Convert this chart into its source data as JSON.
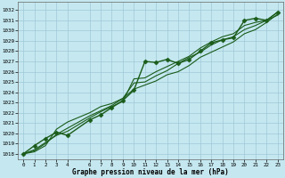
{
  "title": "Graphe pression niveau de la mer (hPa)",
  "bg_color": "#c5e8f0",
  "grid_color": "#a0c8d8",
  "line_color": "#1a5c1a",
  "marker_color": "#1a5c1a",
  "xlim": [
    -0.5,
    23.5
  ],
  "ylim": [
    1017.5,
    1032.8
  ],
  "xticks": [
    0,
    1,
    2,
    3,
    4,
    6,
    7,
    8,
    9,
    10,
    11,
    12,
    13,
    14,
    15,
    16,
    17,
    18,
    19,
    20,
    21,
    22,
    23
  ],
  "yticks": [
    1018,
    1019,
    1020,
    1021,
    1022,
    1023,
    1024,
    1025,
    1026,
    1027,
    1028,
    1029,
    1030,
    1031,
    1032
  ],
  "lines": [
    {
      "x": [
        0,
        1,
        2,
        3,
        4,
        6,
        7,
        8,
        9,
        10,
        11,
        12,
        13,
        14,
        15,
        16,
        17,
        18,
        19,
        20,
        21,
        22,
        23
      ],
      "y": [
        1018.0,
        1018.8,
        1019.5,
        1020.1,
        1019.8,
        1021.3,
        1021.8,
        1022.5,
        1023.2,
        1024.2,
        1027.0,
        1026.9,
        1027.2,
        1026.8,
        1027.2,
        1028.0,
        1028.8,
        1029.1,
        1029.3,
        1031.0,
        1031.2,
        1031.0,
        1031.8
      ],
      "marker": "D",
      "markersize": 2.5,
      "linewidth": 1.0
    },
    {
      "x": [
        0,
        1,
        2,
        3,
        4,
        6,
        7,
        8,
        9,
        10,
        11,
        12,
        13,
        14,
        15,
        16,
        17,
        18,
        19,
        20,
        21,
        22,
        23
      ],
      "y": [
        1018.0,
        1018.4,
        1019.1,
        1019.8,
        1020.2,
        1021.5,
        1022.1,
        1022.6,
        1023.1,
        1025.3,
        1025.4,
        1026.0,
        1026.5,
        1027.0,
        1027.5,
        1028.3,
        1028.9,
        1029.4,
        1029.7,
        1030.5,
        1030.8,
        1031.0,
        1031.8
      ],
      "marker": null,
      "markersize": 0,
      "linewidth": 0.8
    },
    {
      "x": [
        0,
        1,
        2,
        3,
        4,
        6,
        7,
        8,
        9,
        10,
        11,
        12,
        13,
        14,
        15,
        16,
        17,
        18,
        19,
        20,
        21,
        22,
        23
      ],
      "y": [
        1018.0,
        1018.3,
        1019.0,
        1019.9,
        1020.5,
        1021.7,
        1022.2,
        1022.7,
        1023.4,
        1024.9,
        1025.0,
        1025.6,
        1026.1,
        1026.8,
        1027.4,
        1027.9,
        1028.6,
        1029.1,
        1029.4,
        1030.1,
        1030.5,
        1031.0,
        1031.5
      ],
      "marker": null,
      "markersize": 0,
      "linewidth": 0.8
    },
    {
      "x": [
        0,
        1,
        2,
        3,
        4,
        6,
        7,
        8,
        9,
        10,
        11,
        12,
        13,
        14,
        15,
        16,
        17,
        18,
        19,
        20,
        21,
        22,
        23
      ],
      "y": [
        1018.0,
        1018.2,
        1018.8,
        1020.4,
        1021.1,
        1022.0,
        1022.6,
        1022.9,
        1023.4,
        1024.3,
        1024.7,
        1025.1,
        1025.7,
        1026.0,
        1026.6,
        1027.4,
        1027.9,
        1028.4,
        1028.9,
        1029.7,
        1030.1,
        1030.8,
        1031.6
      ],
      "marker": null,
      "markersize": 0,
      "linewidth": 0.8
    }
  ]
}
